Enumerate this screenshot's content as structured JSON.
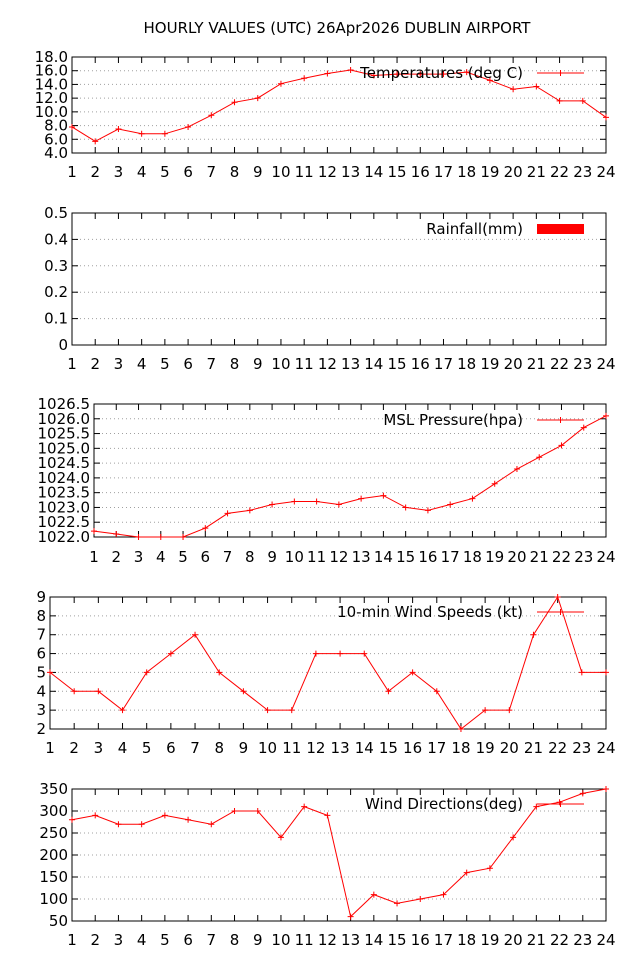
{
  "page_title": "HOURLY VALUES (UTC) 26Apr2026  DUBLIN AIRPORT",
  "chart_data": [
    {
      "type": "line",
      "legend": "Temperatures (deg C)",
      "legend_placement": "top-right",
      "grid": true,
      "color": "#ff0000",
      "categories": [
        "1",
        "2",
        "3",
        "4",
        "5",
        "6",
        "7",
        "8",
        "9",
        "10",
        "11",
        "12",
        "13",
        "14",
        "15",
        "16",
        "17",
        "18",
        "19",
        "20",
        "21",
        "22",
        "23",
        "24"
      ],
      "values": [
        7.8,
        5.7,
        7.5,
        6.8,
        6.8,
        7.8,
        9.5,
        11.4,
        12.0,
        14.1,
        14.9,
        15.6,
        16.1,
        15.3,
        15.5,
        15.5,
        15.5,
        15.8,
        14.6,
        13.3,
        13.7,
        11.6,
        11.6,
        9.2
      ],
      "ylim": [
        4.0,
        18.0
      ],
      "yticks": [
        "4.0",
        "6.0",
        "8.0",
        "10.0",
        "12.0",
        "14.0",
        "16.0",
        "18.0"
      ]
    },
    {
      "type": "bar",
      "legend": "Rainfall(mm)",
      "legend_placement": "top-right",
      "grid": true,
      "color": "#ff0000",
      "categories": [
        "1",
        "2",
        "3",
        "4",
        "5",
        "6",
        "7",
        "8",
        "9",
        "10",
        "11",
        "12",
        "13",
        "14",
        "15",
        "16",
        "17",
        "18",
        "19",
        "20",
        "21",
        "22",
        "23",
        "24"
      ],
      "values": [
        0,
        0,
        0,
        0,
        0,
        0,
        0,
        0,
        0,
        0,
        0,
        0,
        0,
        0,
        0,
        0,
        0,
        0,
        0,
        0,
        0,
        0,
        0,
        0
      ],
      "ylim": [
        0,
        0.5
      ],
      "yticks": [
        "0",
        "0.1",
        "0.2",
        "0.3",
        "0.4",
        "0.5"
      ]
    },
    {
      "type": "line",
      "legend": "MSL Pressure(hpa)",
      "legend_placement": "top-right",
      "grid": true,
      "color": "#ff0000",
      "categories": [
        "1",
        "2",
        "3",
        "4",
        "5",
        "6",
        "7",
        "8",
        "9",
        "10",
        "11",
        "12",
        "13",
        "14",
        "15",
        "16",
        "17",
        "18",
        "19",
        "20",
        "21",
        "22",
        "23",
        "24"
      ],
      "values": [
        1022.2,
        1022.1,
        1022.0,
        1022.0,
        1022.0,
        1022.3,
        1022.8,
        1022.9,
        1023.1,
        1023.2,
        1023.2,
        1023.1,
        1023.3,
        1023.4,
        1023.0,
        1022.9,
        1023.1,
        1023.3,
        1023.8,
        1024.3,
        1024.7,
        1025.1,
        1025.7,
        1026.1
      ],
      "ylim": [
        1022.0,
        1026.5
      ],
      "yticks": [
        "1022.0",
        "1022.5",
        "1023.0",
        "1023.5",
        "1024.0",
        "1024.5",
        "1025.0",
        "1025.5",
        "1026.0",
        "1026.5"
      ]
    },
    {
      "type": "line",
      "legend": "10-min Wind Speeds (kt)",
      "legend_placement": "top-right",
      "grid": true,
      "color": "#ff0000",
      "categories": [
        "1",
        "2",
        "3",
        "4",
        "5",
        "6",
        "7",
        "8",
        "9",
        "10",
        "11",
        "12",
        "13",
        "14",
        "15",
        "16",
        "17",
        "18",
        "19",
        "20",
        "21",
        "22",
        "23",
        "24"
      ],
      "values": [
        5,
        4,
        4,
        3,
        5,
        6,
        7,
        5,
        4,
        3,
        3,
        6,
        6,
        6,
        4,
        5,
        4,
        2,
        3,
        3,
        7,
        9,
        5,
        5
      ],
      "ylim": [
        2,
        9
      ],
      "yticks": [
        "2",
        "3",
        "4",
        "5",
        "6",
        "7",
        "8",
        "9"
      ]
    },
    {
      "type": "line",
      "legend": "Wind Directions(deg)",
      "legend_placement": "top-right",
      "grid": true,
      "color": "#ff0000",
      "categories": [
        "1",
        "2",
        "3",
        "4",
        "5",
        "6",
        "7",
        "8",
        "9",
        "10",
        "11",
        "12",
        "13",
        "14",
        "15",
        "16",
        "17",
        "18",
        "19",
        "20",
        "21",
        "22",
        "23",
        "24"
      ],
      "values": [
        280,
        290,
        270,
        270,
        290,
        280,
        270,
        300,
        300,
        240,
        310,
        290,
        60,
        110,
        90,
        100,
        110,
        160,
        170,
        240,
        310,
        320,
        340,
        350
      ],
      "ylim": [
        50,
        350
      ],
      "yticks": [
        "50",
        "100",
        "150",
        "200",
        "250",
        "300",
        "350"
      ]
    }
  ]
}
